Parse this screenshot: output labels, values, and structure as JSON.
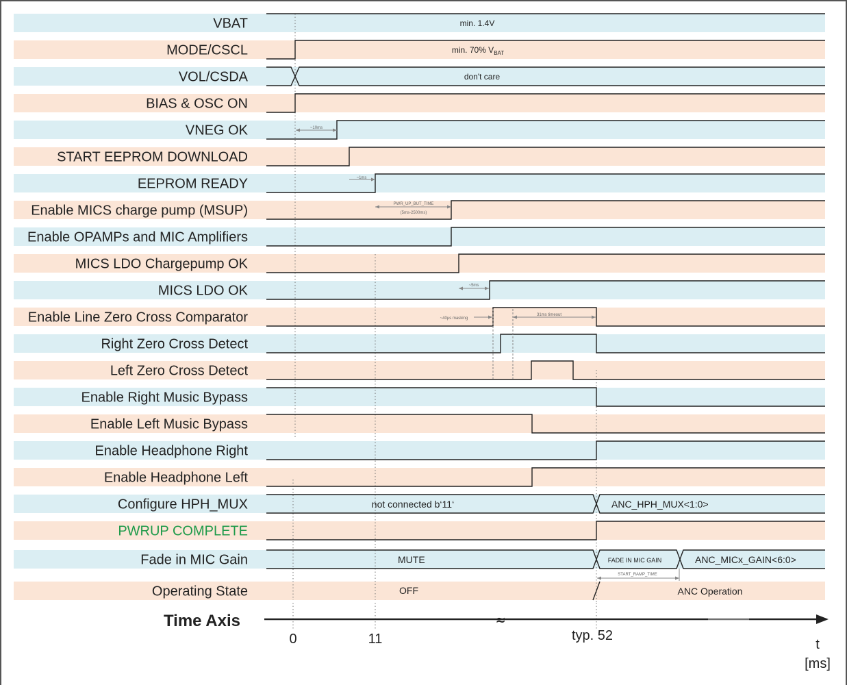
{
  "colors": {
    "blue_band": "#dbeef3",
    "peach_band": "#fbe5d6",
    "green_label": "#1e9a4a"
  },
  "signals": [
    {
      "name": "VBAT",
      "note": "min. 1.4V"
    },
    {
      "name": "MODE/CSCL",
      "note": "min. 70% V",
      "note_sub": "BAT"
    },
    {
      "name": "VOL/CSDA",
      "note": "don't care"
    },
    {
      "name": "BIAS & OSC ON"
    },
    {
      "name": "VNEG OK"
    },
    {
      "name": "START EEPROM DOWNLOAD"
    },
    {
      "name": "EEPROM READY"
    },
    {
      "name": "Enable MICS charge pump (MSUP)"
    },
    {
      "name": "Enable OPAMPs and MIC Amplifiers"
    },
    {
      "name": "MICS LDO Chargepump OK"
    },
    {
      "name": "MICS LDO OK"
    },
    {
      "name": "Enable Line Zero Cross Comparator"
    },
    {
      "name": "Right Zero Cross Detect"
    },
    {
      "name": "Left Zero Cross Detect"
    },
    {
      "name": "Enable Right Music Bypass"
    },
    {
      "name": "Enable Left Music Bypass"
    },
    {
      "name": "Enable Headphone  Right"
    },
    {
      "name": "Enable Headphone  Left"
    },
    {
      "name": "Configure HPH_MUX",
      "state_before": "not connected b‘11‘",
      "state_after": "ANC_HPH_MUX<1:0>"
    },
    {
      "name": "PWRUP COMPLETE"
    },
    {
      "name": "Fade in MIC Gain",
      "state_before": "MUTE",
      "state_mid": "FADE IN MIC GAIN",
      "state_after": "ANC_MICx_GAIN<6:0>"
    },
    {
      "name": "Operating State",
      "state_before": "OFF",
      "state_after": "ANC Operation"
    }
  ],
  "annotations": {
    "vneg_delay": "~10ms",
    "eeprom_delay": "~1ms",
    "pwr_up_line1": "PWR_UP_BUT_TIME",
    "pwr_up_line2": "(5ms-2500ms)",
    "ldo_delay": "~5ms",
    "masking": "~40µs masking",
    "timeout": "31ms timeout",
    "start_ramp": "START_RAMP_TIME"
  },
  "time_axis": {
    "title": "Time Axis",
    "ticks": [
      "0",
      "11",
      "typ. 52"
    ],
    "unit_line1": "t",
    "unit_line2": "[ms]",
    "break_symbol": "≈"
  }
}
